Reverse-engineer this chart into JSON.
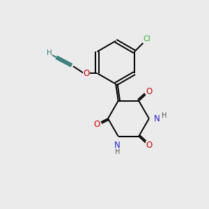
{
  "background_color": "#ebebeb",
  "bond_color": "#000000",
  "cl_color": "#33aa33",
  "o_color": "#cc0000",
  "n_color": "#2222cc",
  "h_color": "#555555",
  "alkyne_color": "#337777",
  "figsize": [
    3.0,
    3.0
  ],
  "dpi": 100,
  "xlim": [
    0,
    10
  ],
  "ylim": [
    0,
    10
  ]
}
